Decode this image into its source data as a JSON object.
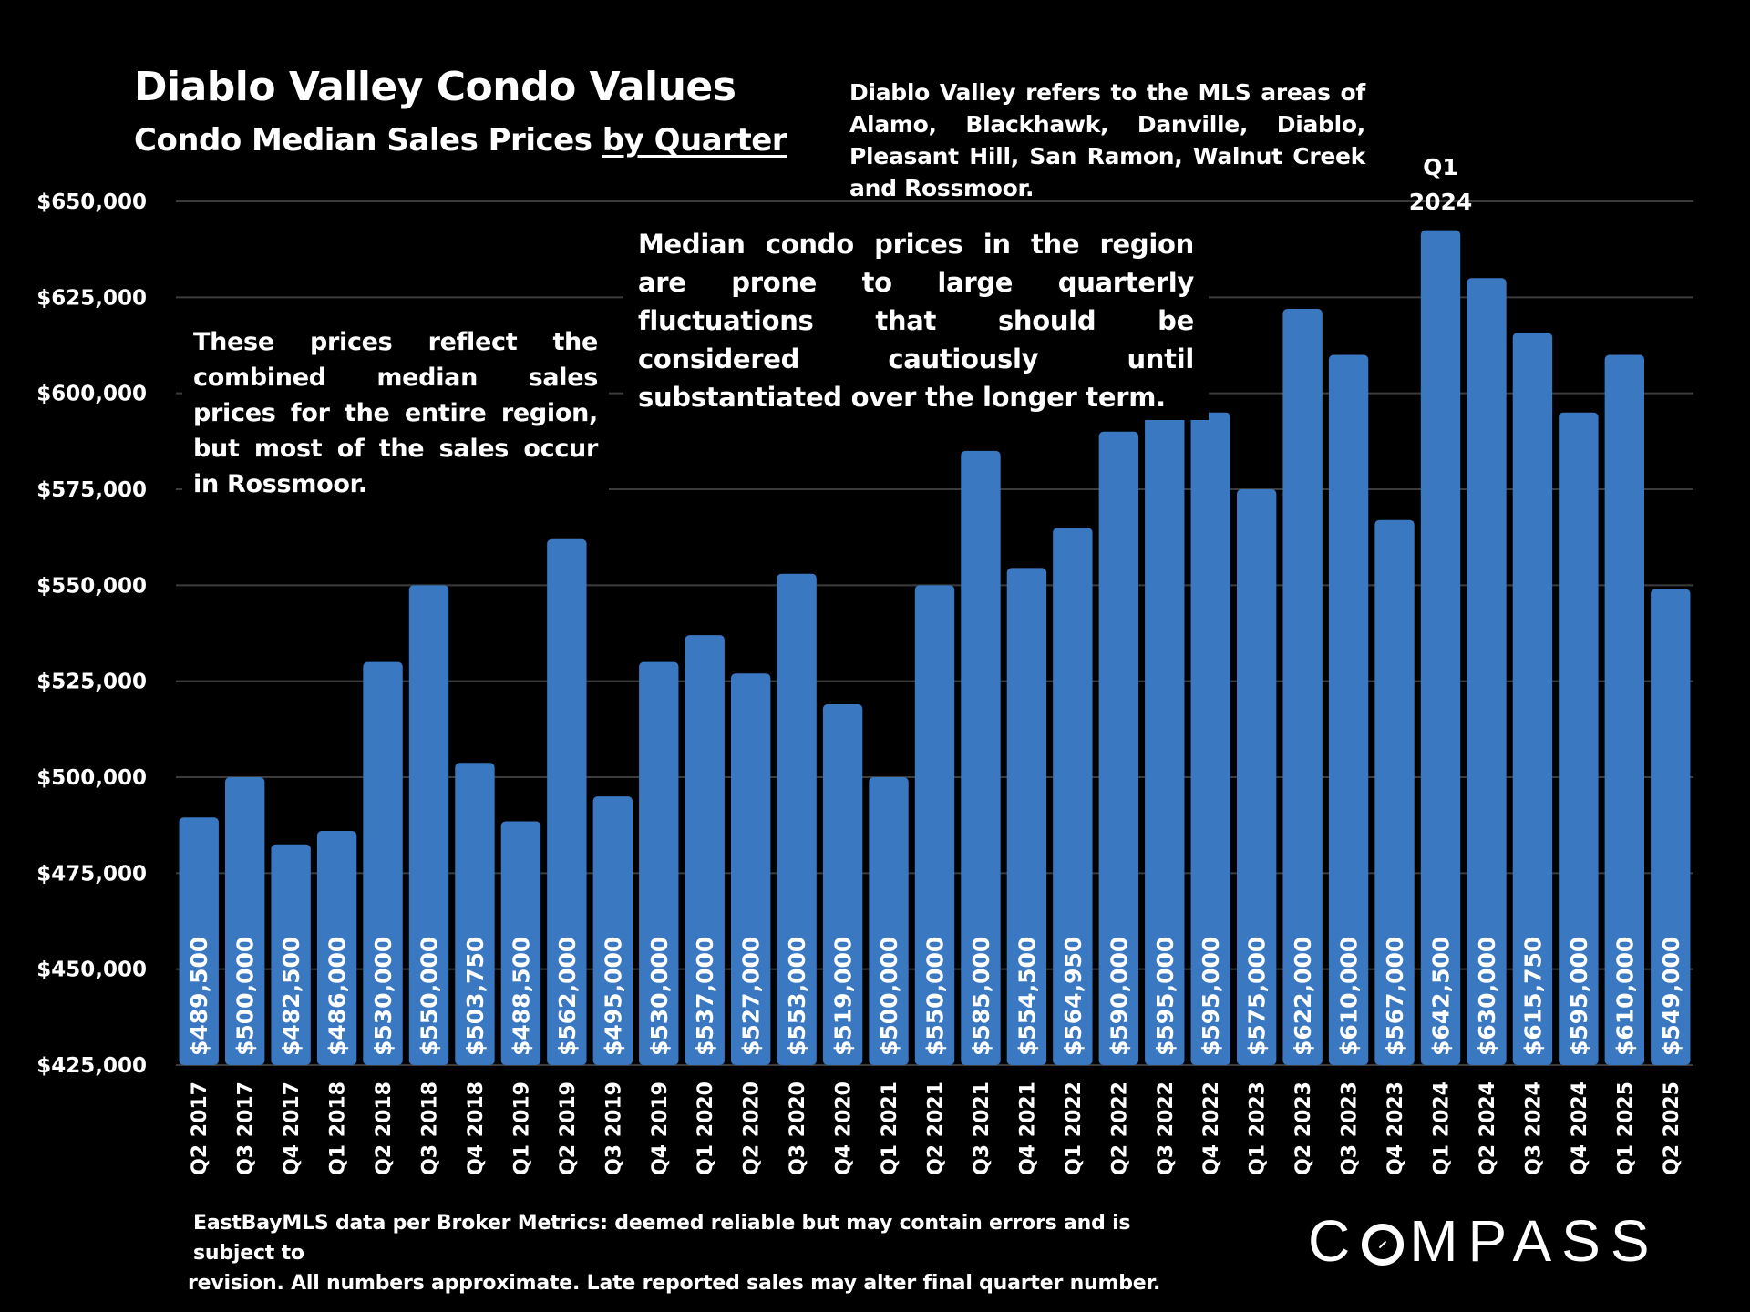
{
  "header": {
    "title": "Diablo Valley Condo Values",
    "subtitle_prefix": "Condo Median Sales Prices ",
    "subtitle_link": "by Quarter"
  },
  "notes": {
    "mls_areas": "Diablo Valley refers to the MLS areas of Alamo, Blackhawk, Danville, Diablo, Pleasant Hill, San Ramon, Walnut Creek and Rossmoor.",
    "combined": "These prices reflect the combined median sales prices for the entire region, but most of the sales occur in Rossmoor.",
    "fluctuations": "Median condo prices in the region are prone to large quarterly fluctuations that should be considered cautiously until substantiated over the longer term.",
    "peak_label_line1": "Q1",
    "peak_label_line2": "2024"
  },
  "footer": {
    "disclaimer_line1": "EastBayMLS data per Broker Metrics:  deemed reliable but may contain errors and is subject to",
    "disclaimer_line2": "revision. All numbers approximate. Late reported sales may alter final quarter number.",
    "logo_left": "C",
    "logo_right": "MPASS"
  },
  "colors": {
    "bar": "#3a78c2",
    "grid": "#3c3c3c",
    "background": "#000000",
    "text": "#ffffff"
  },
  "chart_data": {
    "type": "bar",
    "title": "Diablo Valley Condo Values",
    "subtitle": "Condo Median Sales Prices by Quarter",
    "xlabel": "",
    "ylabel": "",
    "ylim": [
      425000,
      650000
    ],
    "y_ticks": [
      425000,
      450000,
      475000,
      500000,
      525000,
      550000,
      575000,
      600000,
      625000,
      650000
    ],
    "y_tick_labels": [
      "$425,000",
      "$450,000",
      "$475,000",
      "$500,000",
      "$525,000",
      "$550,000",
      "$575,000",
      "$600,000",
      "$625,000",
      "$650,000"
    ],
    "grid": true,
    "legend": "none",
    "categories": [
      "Q2 2017",
      "Q3 2017",
      "Q4 2017",
      "Q1 2018",
      "Q2 2018",
      "Q3 2018",
      "Q4 2018",
      "Q1 2019",
      "Q2 2019",
      "Q3 2019",
      "Q4 2019",
      "Q1 2020",
      "Q2 2020",
      "Q3 2020",
      "Q4 2020",
      "Q1 2021",
      "Q2 2021",
      "Q3 2021",
      "Q4 2021",
      "Q1 2022",
      "Q2 2022",
      "Q3 2022",
      "Q4 2022",
      "Q1 2023",
      "Q2 2023",
      "Q3 2023",
      "Q4 2023",
      "Q1 2024",
      "Q2 2024",
      "Q3 2024",
      "Q4 2024",
      "Q1 2025",
      "Q2 2025"
    ],
    "values": [
      489500,
      500000,
      482500,
      486000,
      530000,
      550000,
      503750,
      488500,
      562000,
      495000,
      530000,
      537000,
      527000,
      553000,
      519000,
      500000,
      550000,
      585000,
      554500,
      564950,
      590000,
      595000,
      595000,
      575000,
      622000,
      610000,
      567000,
      642500,
      630000,
      615750,
      595000,
      610000,
      549000
    ],
    "value_labels": [
      "$489,500",
      "$500,000",
      "$482,500",
      "$486,000",
      "$530,000",
      "$550,000",
      "$503,750",
      "$488,500",
      "$562,000",
      "$495,000",
      "$530,000",
      "$537,000",
      "$527,000",
      "$553,000",
      "$519,000",
      "$500,000",
      "$550,000",
      "$585,000",
      "$554,500",
      "$564,950",
      "$590,000",
      "$595,000",
      "$595,000",
      "$575,000",
      "$622,000",
      "$610,000",
      "$567,000",
      "$642,500",
      "$630,000",
      "$615,750",
      "$595,000",
      "$610,000",
      "$549,000"
    ]
  }
}
